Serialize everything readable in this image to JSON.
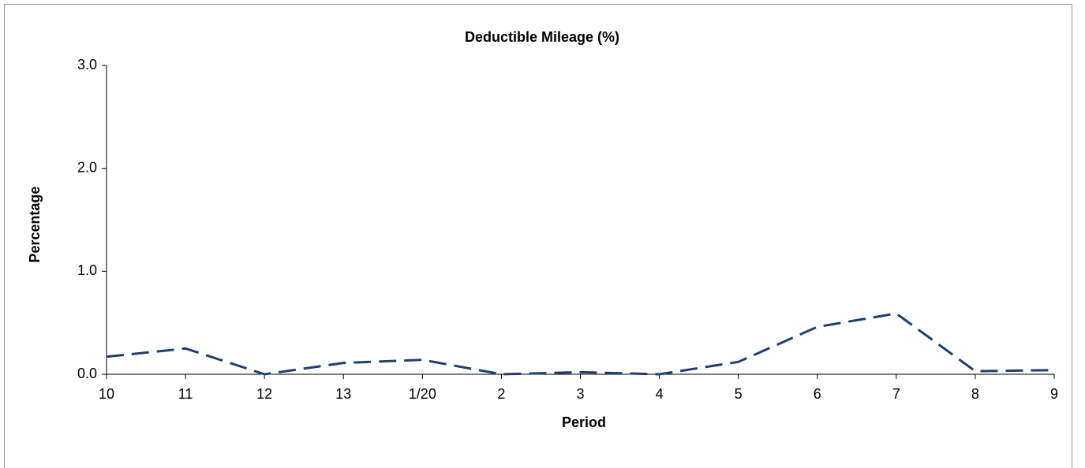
{
  "chart_data": {
    "type": "line",
    "title": "Deductible Mileage (%)",
    "x_label": "Period",
    "y_label": "Percentage",
    "categories": [
      "10",
      "11",
      "12",
      "13",
      "1/20",
      "2",
      "3",
      "4",
      "5",
      "6",
      "7",
      "8",
      "9"
    ],
    "series": [
      {
        "name": "Deductible Mileage",
        "color": "#1f3f6e",
        "values": [
          0.17,
          0.25,
          0.0,
          0.11,
          0.14,
          0.0,
          0.02,
          0.0,
          0.12,
          0.46,
          0.59,
          0.03,
          0.04
        ]
      }
    ],
    "ylim": [
      0,
      3
    ],
    "yticks": [
      {
        "value": 0,
        "label": "0.0"
      },
      {
        "value": 1,
        "label": "1.0"
      },
      {
        "value": 2,
        "label": "2.0"
      },
      {
        "value": 3,
        "label": "3.0"
      }
    ],
    "grid": false
  }
}
